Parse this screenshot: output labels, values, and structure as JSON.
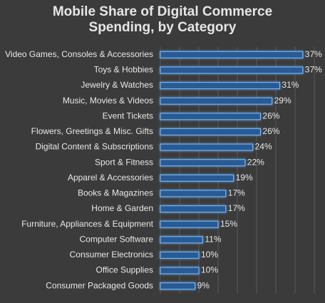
{
  "chart_data": {
    "type": "bar",
    "orientation": "horizontal",
    "title": "Mobile Share of Digital Commerce Spending, by Category",
    "categories": [
      "Video Games, Consoles & Accessories",
      "Toys & Hobbies",
      "Jewelry & Watches",
      "Music, Movies & Videos",
      "Event Tickets",
      "Flowers, Greetings & Misc. Gifts",
      "Digital Content & Subscriptions",
      "Sport & Fitness",
      "Apparel & Accessories",
      "Books & Magazines",
      "Home & Garden",
      "Furniture, Appliances & Equipment",
      "Computer Software",
      "Consumer Electronics",
      "Office Supplies",
      "Consumer Packaged Goods"
    ],
    "values": [
      37,
      37,
      31,
      29,
      26,
      26,
      24,
      22,
      19,
      17,
      17,
      15,
      11,
      10,
      10,
      9
    ],
    "value_labels": [
      "37%",
      "37%",
      "31%",
      "29%",
      "26%",
      "26%",
      "24%",
      "22%",
      "19%",
      "17%",
      "17%",
      "15%",
      "11%",
      "10%",
      "10%",
      "9%"
    ],
    "color": "#2b5a94",
    "edge_color": "#6fb2f0",
    "xlim": [
      0,
      40
    ],
    "xticks": [
      0,
      5,
      10,
      15,
      20,
      25,
      30,
      35,
      40
    ],
    "grid": true
  }
}
